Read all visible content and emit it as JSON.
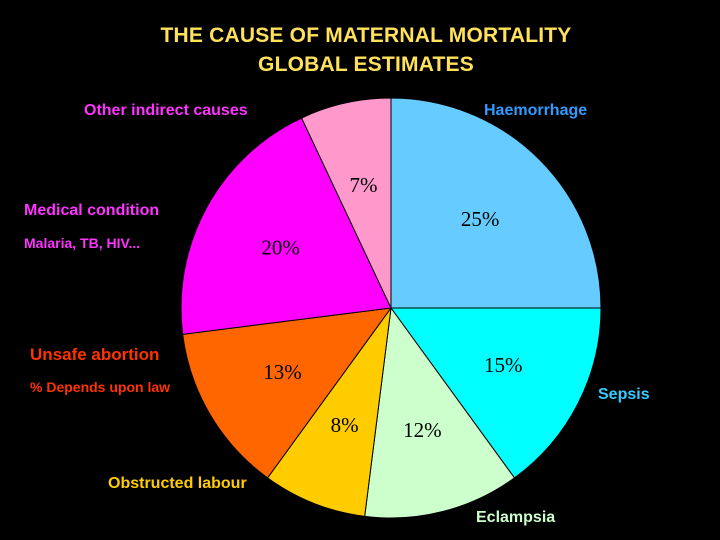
{
  "chart_data": {
    "type": "pie",
    "title": "THE CAUSE OF MATERNAL MORTALITY",
    "subtitle": "GLOBAL ESTIMATES",
    "slices": [
      {
        "label": "Haemorrhage",
        "value": 25,
        "value_label": "25%",
        "color": "#66ccff",
        "text_color": "#3399ff"
      },
      {
        "label": "Sepsis",
        "value": 15,
        "value_label": "15%",
        "color": "#00ffff",
        "text_color": "#33ccff"
      },
      {
        "label": "Eclampsia",
        "value": 12,
        "value_label": "12%",
        "color": "#ccffcc",
        "text_color": "#ccffcc"
      },
      {
        "label": "Obstructed labour",
        "value": 8,
        "value_label": "8%",
        "color": "#ffcc00",
        "text_color": "#ffcc00"
      },
      {
        "label": "Unsafe abortion",
        "sublabel": "% Depends upon law",
        "value": 13,
        "value_label": "13%",
        "color": "#ff6600",
        "text_color": "#ff3300"
      },
      {
        "label": "Medical condition",
        "sublabel": "Malaria, TB, HIV...",
        "value": 20,
        "value_label": "20%",
        "color": "#ff00ff",
        "text_color": "#ff33ff"
      },
      {
        "label": "Other indirect causes",
        "value": 7,
        "value_label": "7%",
        "color": "#ff99cc",
        "text_color": "#ff33ff"
      }
    ]
  }
}
